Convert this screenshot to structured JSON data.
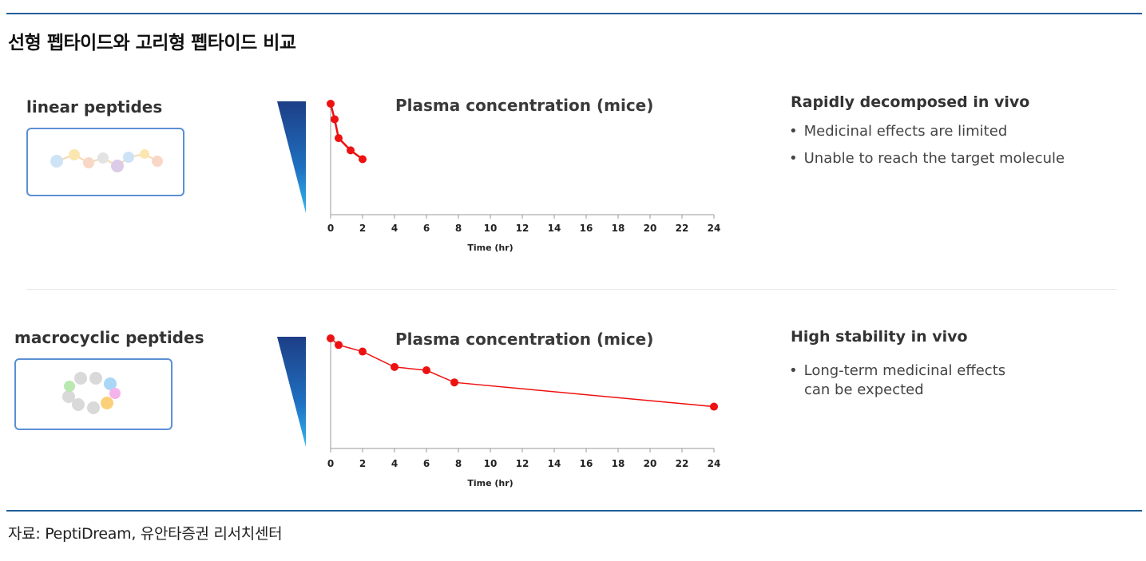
{
  "title": "선형 펩타이드와 고리형 펩타이드 비교",
  "source": "자료: PeptiDream, 유안타증권 리서치센터",
  "colors": {
    "rule": "#1f5f99",
    "series": "#ee1111",
    "box_border": "#5b8fd4"
  },
  "linear": {
    "label": "linear peptides",
    "heading": "Rapidly decomposed in vivo",
    "bullets": [
      "Medicinal effects are limited",
      "Unable to reach the target molecule"
    ]
  },
  "macro": {
    "label": "macrocyclic peptides",
    "heading": "High stability in vivo",
    "bullet_line1": "Long-term medicinal effects",
    "bullet_line2": "can be expected"
  },
  "chart_data": [
    {
      "type": "line",
      "title": "Plasma concentration (mice)",
      "xlabel": "Time (hr)",
      "ylabel": "",
      "xlim": [
        0,
        24
      ],
      "ylim": [
        0,
        1
      ],
      "xticks": [
        0,
        2,
        4,
        6,
        8,
        10,
        12,
        14,
        16,
        18,
        20,
        22,
        24
      ],
      "series": [
        {
          "name": "linear peptides",
          "x": [
            0,
            0.25,
            0.5,
            1.25,
            2
          ],
          "y": [
            1.0,
            0.86,
            0.69,
            0.58,
            0.5
          ]
        }
      ]
    },
    {
      "type": "line",
      "title": "Plasma concentration (mice)",
      "xlabel": "Time (hr)",
      "ylabel": "",
      "xlim": [
        0,
        24
      ],
      "ylim": [
        0,
        1
      ],
      "xticks": [
        0,
        2,
        4,
        6,
        8,
        10,
        12,
        14,
        16,
        18,
        20,
        22,
        24
      ],
      "series": [
        {
          "name": "macrocyclic peptides",
          "x": [
            0,
            0.5,
            2,
            4,
            6,
            7.75,
            24
          ],
          "y": [
            1.0,
            0.94,
            0.88,
            0.74,
            0.71,
            0.6,
            0.38
          ]
        }
      ]
    }
  ]
}
